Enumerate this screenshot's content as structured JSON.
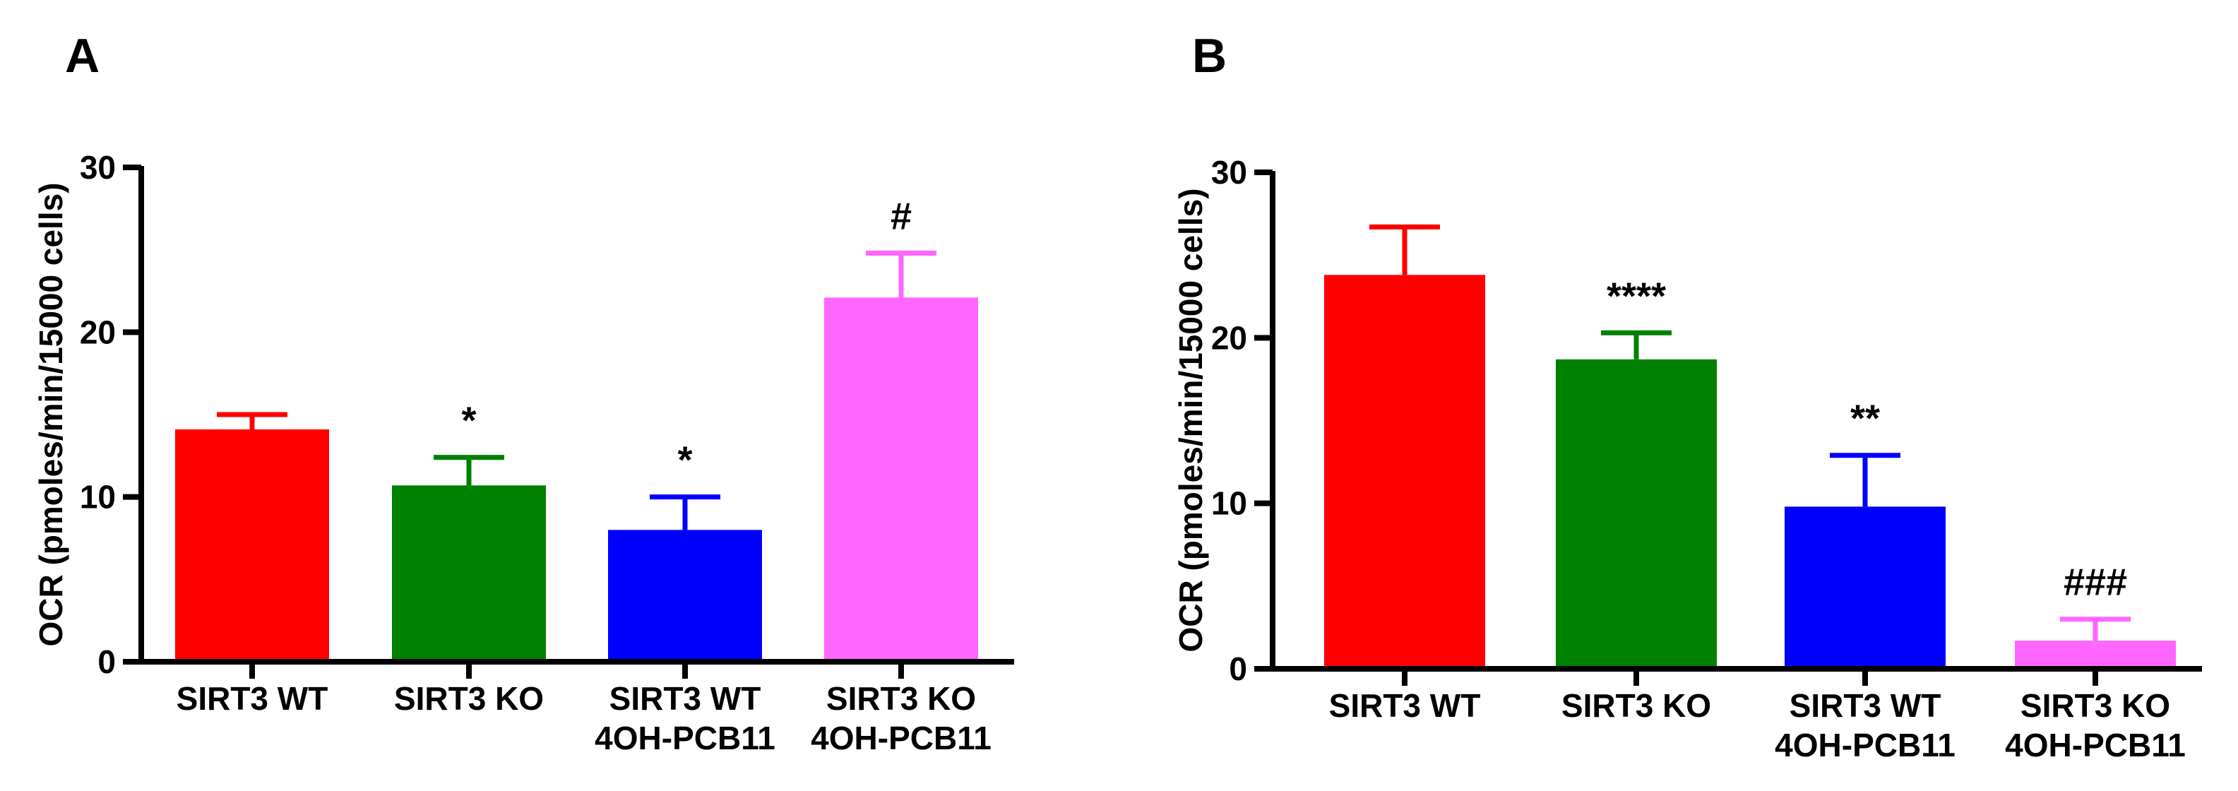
{
  "chart_data": [
    {
      "type": "bar",
      "panel_label": "A",
      "ylabel": "OCR (pmoles/min/15000 cells)",
      "xlabel": "",
      "ylim": [
        0,
        30
      ],
      "yticks": [
        0,
        10,
        20,
        30
      ],
      "categories": [
        [
          "SIRT3 WT"
        ],
        [
          "SIRT3 KO"
        ],
        [
          "SIRT3 WT",
          "4OH-PCB11"
        ],
        [
          "SIRT3 KO",
          "4OH-PCB11"
        ]
      ],
      "values": [
        14.1,
        10.7,
        8.0,
        22.1
      ],
      "errors": [
        0.9,
        1.7,
        2.0,
        2.7
      ],
      "annotations": [
        "",
        "*",
        "*",
        "#"
      ],
      "colors": [
        "#ff0000",
        "#008000",
        "#0000ff",
        "#ff66ff"
      ]
    },
    {
      "type": "bar",
      "panel_label": "B",
      "ylabel": "OCR (pmoles/min/15000 cells)",
      "xlabel": "",
      "ylim": [
        0,
        30
      ],
      "yticks": [
        0,
        10,
        20,
        30
      ],
      "categories": [
        [
          "SIRT3 WT"
        ],
        [
          "SIRT3 KO"
        ],
        [
          "SIRT3 WT",
          "4OH-PCB11"
        ],
        [
          "SIRT3 KO",
          "4OH-PCB11"
        ]
      ],
      "values": [
        23.8,
        18.7,
        9.8,
        1.7
      ],
      "errors": [
        2.9,
        1.6,
        3.1,
        1.3
      ],
      "annotations": [
        "",
        "****",
        "**",
        "###"
      ],
      "colors": [
        "#ff0000",
        "#008000",
        "#0000ff",
        "#ff66ff"
      ]
    }
  ]
}
